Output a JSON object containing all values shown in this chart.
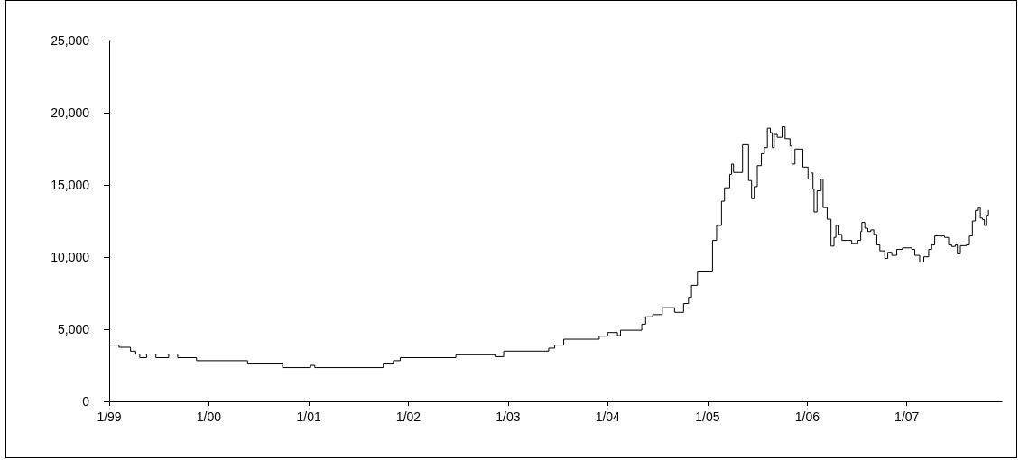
{
  "chart_data": {
    "type": "step",
    "marker": "none",
    "xlim": [
      "1999-01-01",
      "2007-12-15"
    ],
    "xticks": [
      {
        "value": "1999-01-01",
        "label": "1/99"
      },
      {
        "value": "2000-01-01",
        "label": "1/00"
      },
      {
        "value": "2001-01-01",
        "label": "1/01"
      },
      {
        "value": "2002-01-01",
        "label": "1/02"
      },
      {
        "value": "2003-01-01",
        "label": "1/03"
      },
      {
        "value": "2004-01-01",
        "label": "1/04"
      },
      {
        "value": "2005-01-01",
        "label": "1/05"
      },
      {
        "value": "2006-01-01",
        "label": "1/06"
      },
      {
        "value": "2007-01-01",
        "label": "1/07"
      }
    ],
    "ylim": [
      0,
      25000
    ],
    "yticks": [
      0,
      {
        "value": 5000,
        "label": "5,000"
      },
      {
        "value": 10000,
        "label": "10,000"
      },
      {
        "value": 15000,
        "label": "15,000"
      },
      {
        "value": 20000,
        "label": "20,000"
      },
      {
        "value": 25000,
        "label": "25,000"
      }
    ],
    "x": [
      "1999-01-01",
      "1999-02-06",
      "1999-03-20",
      "1999-04-08",
      "1999-04-23",
      "1999-05-18",
      "1999-06-21",
      "1999-08-07",
      "1999-09-09",
      "1999-11-17",
      "2000-05-22",
      "2000-09-27",
      "2001-01-08",
      "2001-01-23",
      "2001-10-01",
      "2001-11-07",
      "2001-12-02",
      "2002-06-24",
      "2002-11-14",
      "2002-12-16",
      "2003-05-30",
      "2003-06-21",
      "2003-07-24",
      "2003-12-01",
      "2004-01-01",
      "2004-02-06",
      "2004-02-17",
      "2004-05-05",
      "2004-05-19",
      "2004-06-14",
      "2004-07-19",
      "2004-09-02",
      "2004-10-05",
      "2004-10-23",
      "2004-11-03",
      "2004-11-25",
      "2005-01-19",
      "2005-02-03",
      "2005-02-21",
      "2005-03-04",
      "2005-03-23",
      "2005-03-30",
      "2005-04-06",
      "2005-05-09",
      "2005-05-31",
      "2005-06-11",
      "2005-06-21",
      "2005-07-02",
      "2005-07-17",
      "2005-07-28",
      "2005-08-08",
      "2005-08-19",
      "2005-08-26",
      "2005-09-02",
      "2005-09-13",
      "2005-10-01",
      "2005-10-12",
      "2005-10-30",
      "2005-11-06",
      "2005-11-17",
      "2005-12-16",
      "2006-01-04",
      "2006-01-15",
      "2006-01-22",
      "2006-01-26",
      "2006-02-06",
      "2006-02-21",
      "2006-02-28",
      "2006-03-15",
      "2006-03-29",
      "2006-04-09",
      "2006-04-16",
      "2006-04-27",
      "2006-05-08",
      "2006-06-13",
      "2006-07-05",
      "2006-07-16",
      "2006-07-20",
      "2006-07-31",
      "2006-08-11",
      "2006-08-22",
      "2006-09-02",
      "2006-09-13",
      "2006-09-24",
      "2006-10-12",
      "2006-10-23",
      "2006-11-07",
      "2006-11-25",
      "2006-12-16",
      "2007-01-19",
      "2007-01-30",
      "2007-02-17",
      "2007-03-04",
      "2007-03-22",
      "2007-04-02",
      "2007-04-13",
      "2007-05-19",
      "2007-06-03",
      "2007-06-14",
      "2007-06-28",
      "2007-07-05",
      "2007-07-16",
      "2007-08-07",
      "2007-08-18",
      "2007-08-29",
      "2007-09-09",
      "2007-09-20",
      "2007-09-27",
      "2007-10-05",
      "2007-10-12",
      "2007-10-19",
      "2007-10-27"
    ],
    "series": [
      {
        "color": "#000000",
        "values": [
          3900,
          3750,
          3480,
          3280,
          3030,
          3280,
          3030,
          3280,
          3030,
          2820,
          2590,
          2340,
          2500,
          2340,
          2590,
          2820,
          3030,
          3230,
          3100,
          3480,
          3690,
          3900,
          4310,
          4520,
          4770,
          4560,
          4930,
          5350,
          5860,
          6010,
          6490,
          6170,
          6780,
          7210,
          8040,
          8970,
          11150,
          12190,
          13870,
          14800,
          15730,
          16440,
          15860,
          17790,
          15300,
          14050,
          14880,
          16330,
          17160,
          17580,
          18930,
          18620,
          17580,
          18500,
          18300,
          19030,
          18200,
          17700,
          16440,
          17480,
          16230,
          15400,
          15820,
          14690,
          13120,
          14590,
          15400,
          13430,
          12620,
          10760,
          11360,
          12190,
          11570,
          11150,
          10950,
          11150,
          11770,
          12400,
          12000,
          11770,
          11880,
          11570,
          10840,
          10430,
          9910,
          10330,
          10120,
          10530,
          10640,
          10530,
          10120,
          9660,
          10020,
          10530,
          10840,
          11460,
          11360,
          10840,
          10740,
          10840,
          10220,
          10790,
          10840,
          11460,
          12500,
          13230,
          13430,
          12700,
          12600,
          12190,
          12910,
          13260
        ]
      }
    ]
  }
}
